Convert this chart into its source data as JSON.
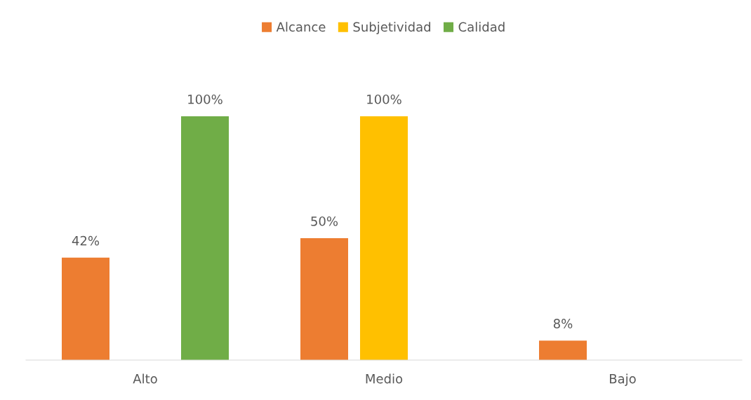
{
  "chart_data": {
    "type": "bar",
    "categories": [
      "Alto",
      "Medio",
      "Bajo"
    ],
    "series": [
      {
        "name": "Alcance",
        "color": "#ed7d31",
        "values": [
          42,
          50,
          8
        ],
        "value_labels": [
          "42%",
          "50%",
          "8%"
        ]
      },
      {
        "name": "Subjetividad",
        "color": "#ffc000",
        "values": [
          null,
          100,
          null
        ],
        "value_labels": [
          null,
          "100%",
          null
        ]
      },
      {
        "name": "Calidad",
        "color": "#70ad47",
        "values": [
          100,
          null,
          null
        ],
        "value_labels": [
          "100%",
          null,
          null
        ]
      }
    ],
    "legend": "top"
  }
}
